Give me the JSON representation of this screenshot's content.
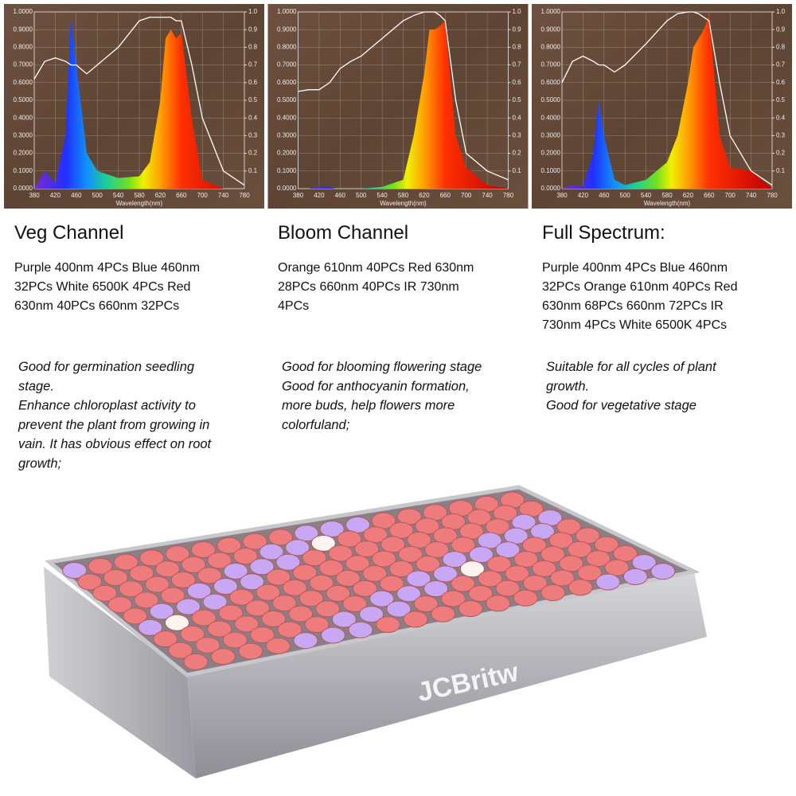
{
  "chart_data": [
    {
      "type": "line",
      "x_label": "Wavelength(nm)",
      "x": [
        380,
        400,
        420,
        440,
        450,
        460,
        480,
        500,
        540,
        580,
        600,
        620,
        630,
        640,
        650,
        660,
        680,
        700,
        740,
        780
      ],
      "series": [
        {
          "values": [
            0,
            0.1,
            0.03,
            0.3,
            0.98,
            0.7,
            0.2,
            0.1,
            0.06,
            0.07,
            0.15,
            0.5,
            0.85,
            0.9,
            0.85,
            0.88,
            0.4,
            0.05,
            0,
            0
          ]
        },
        {
          "axis": "y2",
          "color": "#ffffff",
          "values": [
            0.62,
            0.72,
            0.74,
            0.72,
            0.7,
            0.7,
            0.65,
            0.7,
            0.8,
            0.95,
            0.97,
            0.97,
            0.97,
            0.97,
            0.95,
            0.95,
            0.7,
            0.4,
            0.1,
            0.02
          ]
        }
      ],
      "xlim": [
        380,
        780
      ],
      "xticks": [
        380,
        420,
        460,
        500,
        540,
        580,
        620,
        660,
        700,
        740,
        780
      ],
      "ylim": [
        0,
        1
      ],
      "yticks": [
        {
          "value": 0,
          "label": "0.0000"
        },
        {
          "value": 0.1,
          "label": "0.1000"
        },
        {
          "value": 0.2,
          "label": "0.2000"
        },
        {
          "value": 0.3,
          "label": "0.3000"
        },
        {
          "value": 0.4,
          "label": "0.4000"
        },
        {
          "value": 0.5,
          "label": "0.5000"
        },
        {
          "value": 0.6,
          "label": "0.6000"
        },
        {
          "value": 0.7,
          "label": "0.7000"
        },
        {
          "value": 0.8,
          "label": "0.8000"
        },
        {
          "value": 0.9,
          "label": "0.9000"
        },
        {
          "value": 1,
          "label": "1.0000"
        }
      ],
      "y2lim": [
        0,
        1
      ],
      "y2ticks": [
        0.1,
        0.2,
        0.3,
        0.4,
        0.5,
        0.6,
        0.7,
        0.8,
        0.9,
        {
          "value": 1,
          "label": "1.0"
        }
      ],
      "grid": true
    },
    {
      "type": "line",
      "x_label": "Wavelength(nm)",
      "x": [
        380,
        400,
        420,
        440,
        450,
        460,
        480,
        500,
        540,
        580,
        600,
        620,
        630,
        640,
        650,
        660,
        680,
        700,
        740,
        780
      ],
      "series": [
        {
          "values": [
            0,
            0,
            0.01,
            0.01,
            0,
            0,
            0,
            0,
            0.01,
            0.05,
            0.3,
            0.65,
            0.9,
            0.9,
            0.92,
            0.95,
            0.3,
            0.12,
            0.02,
            0
          ]
        },
        {
          "axis": "y2",
          "color": "#ffffff",
          "values": [
            0.55,
            0.56,
            0.56,
            0.6,
            0.64,
            0.68,
            0.72,
            0.75,
            0.85,
            0.95,
            0.98,
            1,
            1,
            1,
            0.98,
            0.95,
            0.5,
            0.2,
            0.1,
            0.05
          ]
        }
      ],
      "xlim": [
        380,
        780
      ],
      "xticks": [
        380,
        420,
        460,
        500,
        540,
        580,
        620,
        660,
        700,
        740,
        780
      ],
      "ylim": [
        0,
        1
      ],
      "yticks": [
        {
          "value": 0,
          "label": "0.0000"
        },
        {
          "value": 0.1,
          "label": "0.1000"
        },
        {
          "value": 0.2,
          "label": "0.2000"
        },
        {
          "value": 0.3,
          "label": "0.3000"
        },
        {
          "value": 0.4,
          "label": "0.4000"
        },
        {
          "value": 0.5,
          "label": "0.5000"
        },
        {
          "value": 0.6,
          "label": "0.6000"
        },
        {
          "value": 0.7,
          "label": "0.7000"
        },
        {
          "value": 0.8,
          "label": "0.8000"
        },
        {
          "value": 0.9,
          "label": "0.9000"
        },
        {
          "value": 1,
          "label": "1.0000"
        }
      ],
      "y2lim": [
        0,
        1
      ],
      "y2ticks": [
        0.1,
        0.2,
        0.3,
        0.4,
        0.5,
        0.6,
        0.7,
        0.8,
        0.9,
        {
          "value": 1,
          "label": "1.0"
        }
      ],
      "grid": true
    },
    {
      "type": "line",
      "x_label": "Wavelength(nm)",
      "x": [
        380,
        400,
        420,
        440,
        450,
        460,
        480,
        500,
        540,
        580,
        600,
        620,
        630,
        640,
        650,
        660,
        680,
        700,
        740,
        780
      ],
      "series": [
        {
          "values": [
            0,
            0.02,
            0.01,
            0.2,
            0.5,
            0.3,
            0.05,
            0.02,
            0.05,
            0.15,
            0.3,
            0.6,
            0.8,
            0.85,
            0.9,
            0.98,
            0.3,
            0.12,
            0.1,
            0
          ]
        },
        {
          "axis": "y2",
          "color": "#ffffff",
          "values": [
            0.6,
            0.72,
            0.75,
            0.72,
            0.7,
            0.7,
            0.66,
            0.7,
            0.82,
            0.95,
            0.99,
            1,
            1,
            0.99,
            0.97,
            0.95,
            0.6,
            0.3,
            0.1,
            0.02
          ]
        }
      ],
      "xlim": [
        380,
        780
      ],
      "xticks": [
        380,
        420,
        460,
        500,
        540,
        580,
        620,
        660,
        700,
        740,
        780
      ],
      "ylim": [
        0,
        1
      ],
      "yticks": [
        {
          "value": 0,
          "label": "0.0000"
        },
        {
          "value": 0.1,
          "label": "0.1000"
        },
        {
          "value": 0.2,
          "label": "0.2000"
        },
        {
          "value": 0.3,
          "label": "0.3000"
        },
        {
          "value": 0.4,
          "label": "0.4000"
        },
        {
          "value": 0.5,
          "label": "0.5000"
        },
        {
          "value": 0.6,
          "label": "0.6000"
        },
        {
          "value": 0.7,
          "label": "0.7000"
        },
        {
          "value": 0.8,
          "label": "0.8000"
        },
        {
          "value": 0.9,
          "label": "0.9000"
        },
        {
          "value": 1,
          "label": "1.0000"
        }
      ],
      "y2lim": [
        0,
        1
      ],
      "y2ticks": [
        0.1,
        0.2,
        0.3,
        0.4,
        0.5,
        0.6,
        0.7,
        0.8,
        0.9,
        {
          "value": 1,
          "label": "1.0"
        }
      ],
      "grid": true
    }
  ],
  "panels": [
    {
      "heading": "Veg Channel",
      "spec": [
        "Purple 400nm 4PCs Blue 460nm",
        "32PCs White 6500K 4PCs Red",
        "630nm 40PCs 660nm 32PCs"
      ],
      "notes": [
        "Good for germination seedling",
        "stage.",
        "Enhance chloroplast activity to",
        "prevent the plant from growing in",
        "vain. It has obvious effect on root",
        "growth;"
      ]
    },
    {
      "heading": "Bloom Channel",
      "spec": [
        "Orange 610nm 40PCs Red 630nm",
        "28PCs 660nm 40PCs IR 730nm",
        "4PCs"
      ],
      "notes": [
        "Good for blooming flowering stage",
        "Good for anthocyanin formation,",
        "more buds, help flowers more",
        "colorfuland;"
      ]
    },
    {
      "heading": "Full Spectrum:",
      "spec": [
        "Purple 400nm 4PCs Blue 460nm",
        "32PCs Orange 610nm 40PCs Red",
        "630nm 68PCs 660nm 72PCs IR",
        "730nm 4PCs White 6500K 4PCs"
      ],
      "notes": [
        "Suitable for all cycles of plant",
        "growth.",
        "Good for vegetative stage"
      ]
    }
  ],
  "brand": "JCBritw"
}
